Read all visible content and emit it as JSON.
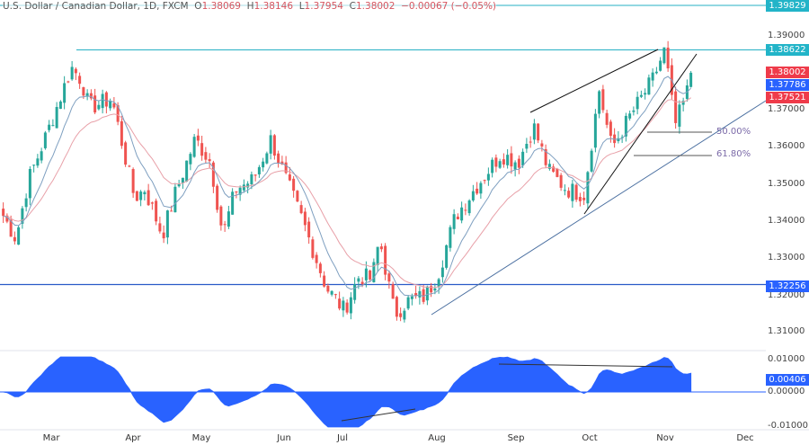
{
  "header": {
    "symbol": "U.S. Dollar / Canadian Dollar, 1D, FXCM",
    "o_label": "O",
    "o": "1.38069",
    "h_label": "H",
    "h": "1.38146",
    "l_label": "L",
    "l": "1.37954",
    "c_label": "C",
    "c": "1.38002",
    "change": "−0.00067 (−0.05%)"
  },
  "badges": {
    "top": "1.39829",
    "resist": "1.38622",
    "last": "1.38002",
    "ma_fast": "1.37786",
    "ma_slow": "1.37521",
    "support": "1.32256",
    "osc": "0.00406"
  },
  "fib": {
    "f50": "50.00%",
    "f618": "61.80%"
  },
  "colors": {
    "up": "#26a69a",
    "down": "#ef5350",
    "ma_fast": "#7e9fc0",
    "ma_slow": "#e8a0a8",
    "hline": "#26b0c4",
    "support": "#2a5bc8",
    "osc": "#2962ff"
  },
  "chart_data": {
    "type": "candlestick",
    "title": "U.S. Dollar / Canadian Dollar, 1D, FXCM",
    "y_ticks": [
      "1.39000",
      "1.37000",
      "1.36000",
      "1.35000",
      "1.34000",
      "1.33000",
      "1.32000",
      "1.31000"
    ],
    "ylim": [
      1.3055,
      1.4
    ],
    "x_ticks": [
      "Mar",
      "Apr",
      "May",
      "Jun",
      "Jul",
      "Aug",
      "Sep",
      "Oct",
      "Nov",
      "Dec"
    ],
    "close_path": [
      [
        "2023-02-10",
        1.3412
      ],
      [
        "2023-02-15",
        1.335
      ],
      [
        "2023-02-20",
        1.351
      ],
      [
        "2023-02-27",
        1.363
      ],
      [
        "2023-03-09",
        1.3815
      ],
      [
        "2023-03-13",
        1.378
      ],
      [
        "2023-03-16",
        1.3705
      ],
      [
        "2023-03-25",
        1.373
      ],
      [
        "2023-03-29",
        1.361
      ],
      [
        "2023-04-03",
        1.346
      ],
      [
        "2023-04-07",
        1.3485
      ],
      [
        "2023-04-14",
        1.336
      ],
      [
        "2023-04-19",
        1.347
      ],
      [
        "2023-04-27",
        1.362
      ],
      [
        "2023-05-03",
        1.356
      ],
      [
        "2023-05-08",
        1.336
      ],
      [
        "2023-05-13",
        1.3485
      ],
      [
        "2023-05-20",
        1.351
      ],
      [
        "2023-05-27",
        1.362
      ],
      [
        "2023-06-02",
        1.351
      ],
      [
        "2023-06-09",
        1.339
      ],
      [
        "2023-06-18",
        1.3217
      ],
      [
        "2023-06-25",
        1.3156
      ],
      [
        "2023-07-01",
        1.325
      ],
      [
        "2023-07-06",
        1.324
      ],
      [
        "2023-07-09",
        1.335
      ],
      [
        "2023-07-15",
        1.3144
      ],
      [
        "2023-07-20",
        1.318
      ],
      [
        "2023-07-27",
        1.3193
      ],
      [
        "2023-08-01",
        1.325
      ],
      [
        "2023-08-08",
        1.341
      ],
      [
        "2023-08-17",
        1.3498
      ],
      [
        "2023-08-26",
        1.358
      ],
      [
        "2023-09-02",
        1.3558
      ],
      [
        "2023-09-08",
        1.3656
      ],
      [
        "2023-09-14",
        1.3534
      ],
      [
        "2023-09-21",
        1.3485
      ],
      [
        "2023-09-28",
        1.347
      ],
      [
        "2023-10-04",
        1.3754
      ],
      [
        "2023-10-09",
        1.3595
      ],
      [
        "2023-10-16",
        1.368
      ],
      [
        "2023-10-25",
        1.3778
      ],
      [
        "2023-10-30",
        1.3863
      ],
      [
        "2023-11-03",
        1.3656
      ],
      [
        "2023-11-07",
        1.373
      ],
      [
        "2023-11-10",
        1.38002
      ]
    ],
    "horizontal_levels": [
      1.39829,
      1.38622,
      1.32256
    ],
    "moving_averages": [
      "fast",
      "slow"
    ],
    "oscillator": {
      "y_ticks": [
        "0.01000",
        "0.00000",
        "-0.01000"
      ],
      "ylim": [
        -0.0105,
        0.0105
      ],
      "last": 0.00406
    }
  }
}
